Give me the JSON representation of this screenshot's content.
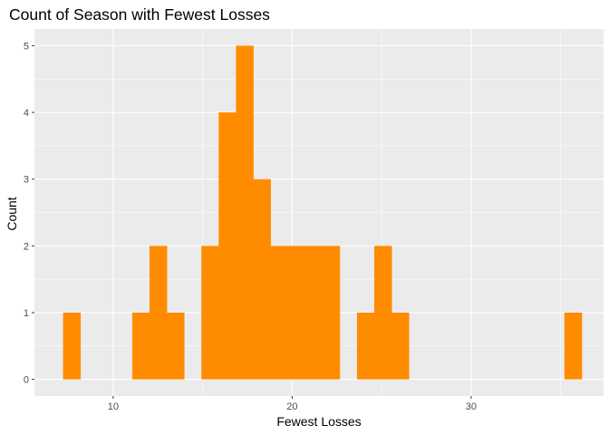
{
  "chart_data": {
    "type": "bar",
    "title": "Count of Season with Fewest Losses",
    "xlabel": "Fewest Losses",
    "ylabel": "Count",
    "xlim": [
      5.6,
      37.4
    ],
    "ylim": [
      -0.25,
      5.25
    ],
    "x_ticks": [
      10,
      20,
      30
    ],
    "x_tick_labels": [
      "10",
      "20",
      "30"
    ],
    "y_ticks": [
      0,
      1,
      2,
      3,
      4,
      5
    ],
    "y_tick_labels": [
      "0",
      "1",
      "2",
      "3",
      "4",
      "5"
    ],
    "bin_width": 0.966,
    "bin_start": 7.2,
    "counts": [
      1,
      0,
      0,
      0,
      1,
      2,
      1,
      0,
      2,
      4,
      5,
      3,
      2,
      2,
      2,
      2,
      0,
      1,
      2,
      1,
      0,
      0,
      0,
      0,
      0,
      0,
      0,
      0,
      0,
      1
    ],
    "grid": true,
    "panel_background": "#ebebeb",
    "gridline_color": "#ffffff",
    "fill_color": "#ff8c00"
  }
}
